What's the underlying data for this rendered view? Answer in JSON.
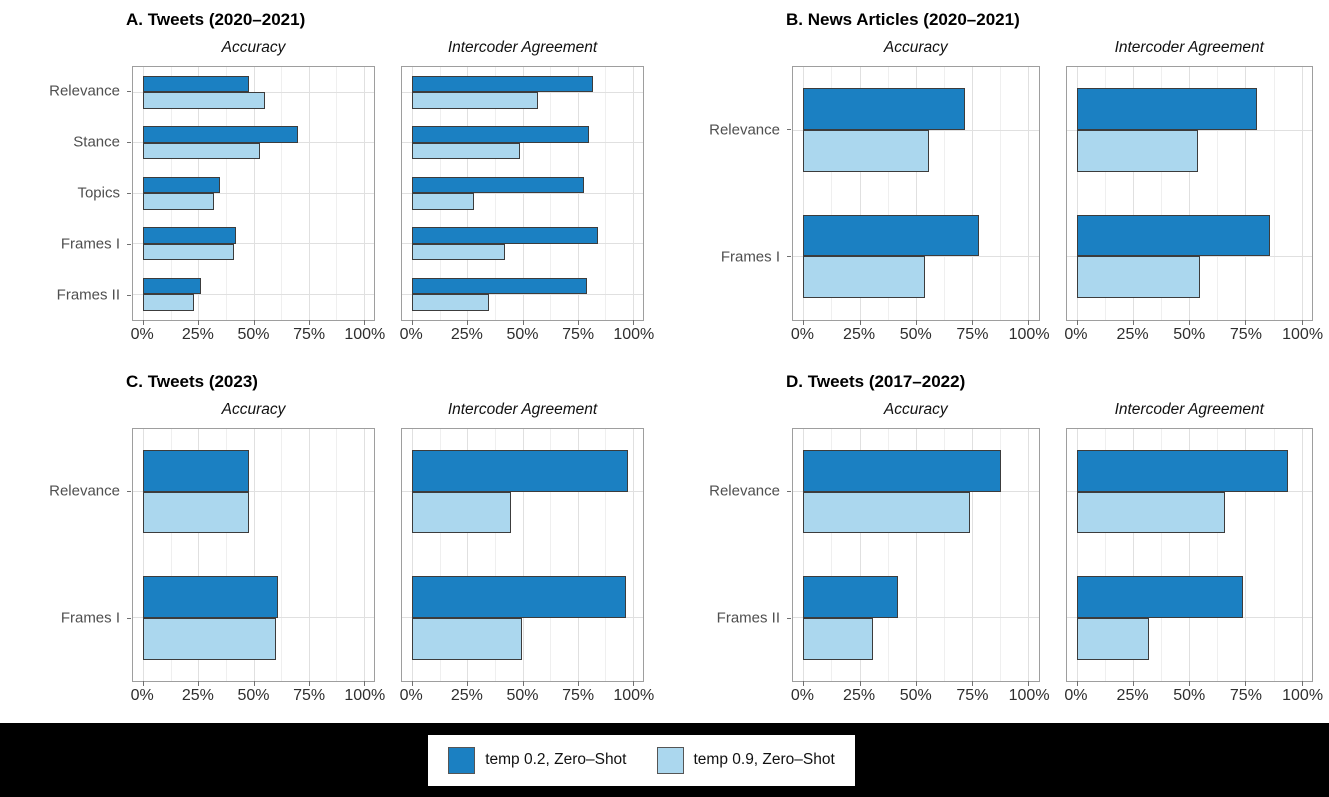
{
  "colors": {
    "bar_dark": "#1b80c2",
    "bar_light": "#abd7ee",
    "bar_border": "#3c3c3c",
    "panel_border": "#9e9e9e",
    "grid_major": "#e0e0e0",
    "grid_minor": "#efefef",
    "footer_background": "#000000"
  },
  "x_axis": {
    "min": 0,
    "max": 100,
    "major_ticks": [
      0,
      25,
      50,
      75,
      100
    ],
    "minor_ticks": [
      12.5,
      37.5,
      62.5,
      87.5
    ],
    "tick_labels": [
      "0%",
      "25%",
      "50%",
      "75%",
      "100%"
    ]
  },
  "legend": {
    "items": [
      {
        "label": "temp 0.2, Zero–Shot",
        "color_key": "bar_dark"
      },
      {
        "label": "temp 0.9, Zero–Shot",
        "color_key": "bar_light"
      }
    ]
  },
  "chart_data": [
    {
      "id": "A",
      "type": "bar",
      "orientation": "horizontal",
      "title": "A. Tweets (2020–2021)",
      "categories": [
        "Relevance",
        "Stance",
        "Topics",
        "Frames I",
        "Frames II"
      ],
      "xlim": [
        0,
        100
      ],
      "facets": [
        {
          "label": "Accuracy",
          "series": [
            {
              "name": "temp 0.2, Zero–Shot",
              "values": [
                48,
                70,
                35,
                42,
                26
              ]
            },
            {
              "name": "temp 0.9, Zero–Shot",
              "values": [
                55,
                53,
                32,
                41,
                23
              ]
            }
          ]
        },
        {
          "label": "Intercoder Agreement",
          "series": [
            {
              "name": "temp 0.2, Zero–Shot",
              "values": [
                82,
                80,
                78,
                84,
                79
              ]
            },
            {
              "name": "temp 0.9, Zero–Shot",
              "values": [
                57,
                49,
                28,
                42,
                35
              ]
            }
          ]
        }
      ]
    },
    {
      "id": "B",
      "type": "bar",
      "orientation": "horizontal",
      "title": "B. News Articles (2020–2021)",
      "categories": [
        "Relevance",
        "Frames I"
      ],
      "xlim": [
        0,
        100
      ],
      "facets": [
        {
          "label": "Accuracy",
          "series": [
            {
              "name": "temp 0.2, Zero–Shot",
              "values": [
                72,
                78
              ]
            },
            {
              "name": "temp 0.9, Zero–Shot",
              "values": [
                56,
                54
              ]
            }
          ]
        },
        {
          "label": "Intercoder Agreement",
          "series": [
            {
              "name": "temp 0.2, Zero–Shot",
              "values": [
                80,
                86
              ]
            },
            {
              "name": "temp 0.9, Zero–Shot",
              "values": [
                54,
                55
              ]
            }
          ]
        }
      ]
    },
    {
      "id": "C",
      "type": "bar",
      "orientation": "horizontal",
      "title": "C. Tweets (2023)",
      "categories": [
        "Relevance",
        "Frames I"
      ],
      "xlim": [
        0,
        100
      ],
      "facets": [
        {
          "label": "Accuracy",
          "series": [
            {
              "name": "temp 0.2, Zero–Shot",
              "values": [
                48,
                61
              ]
            },
            {
              "name": "temp 0.9, Zero–Shot",
              "values": [
                48,
                60
              ]
            }
          ]
        },
        {
          "label": "Intercoder Agreement",
          "series": [
            {
              "name": "temp 0.2, Zero–Shot",
              "values": [
                98,
                97
              ]
            },
            {
              "name": "temp 0.9, Zero–Shot",
              "values": [
                45,
                50
              ]
            }
          ]
        }
      ]
    },
    {
      "id": "D",
      "type": "bar",
      "orientation": "horizontal",
      "title": "D. Tweets (2017–2022)",
      "categories": [
        "Relevance",
        "Frames II"
      ],
      "xlim": [
        0,
        100
      ],
      "facets": [
        {
          "label": "Accuracy",
          "series": [
            {
              "name": "temp 0.2, Zero–Shot",
              "values": [
                88,
                42
              ]
            },
            {
              "name": "temp 0.9, Zero–Shot",
              "values": [
                74,
                31
              ]
            }
          ]
        },
        {
          "label": "Intercoder Agreement",
          "series": [
            {
              "name": "temp 0.2, Zero–Shot",
              "values": [
                94,
                74
              ]
            },
            {
              "name": "temp 0.9, Zero–Shot",
              "values": [
                66,
                32
              ]
            }
          ]
        }
      ]
    }
  ]
}
